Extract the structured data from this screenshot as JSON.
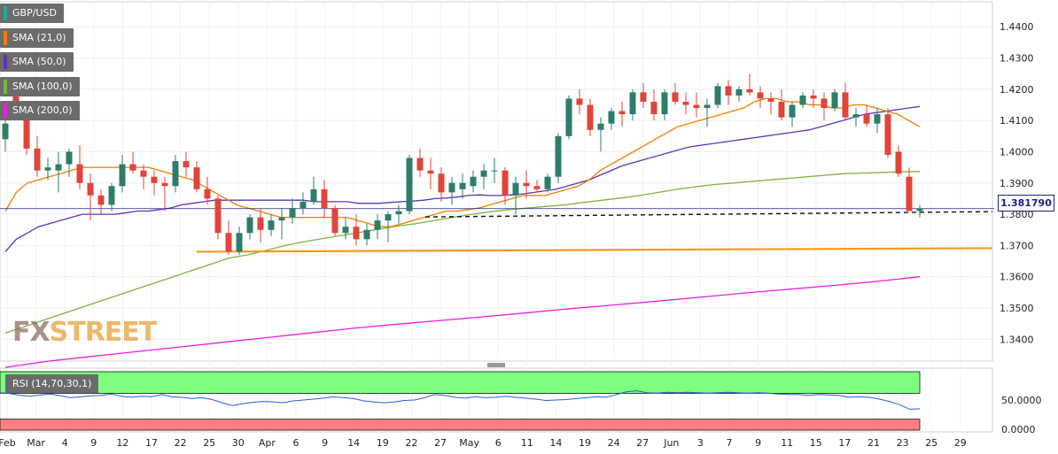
{
  "legend": [
    {
      "label": "GBP/USD",
      "color": "#26a69a"
    },
    {
      "label": "SMA (21,0)",
      "color": "#f57c00"
    },
    {
      "label": "SMA (50,0)",
      "color": "#5e35b1"
    },
    {
      "label": "SMA (100,0)",
      "color": "#7cb342"
    },
    {
      "label": "SMA (200,0)",
      "color": "#e91ee0"
    }
  ],
  "last_price": "1.381790",
  "watermark": {
    "part1": "FX",
    "part2": "STREET",
    "color1": "#8d6e63",
    "color2": "#e8a13a"
  },
  "rsi": {
    "label": "RSI (14,70,30,1)",
    "overbought": 70,
    "oversold": 30,
    "ticks": [
      "50.0000",
      "0.0000"
    ],
    "values": [
      66,
      64,
      60,
      58,
      61,
      63,
      59,
      55,
      57,
      59,
      60,
      63,
      58,
      56,
      58,
      57,
      62,
      57,
      56,
      53,
      55,
      51,
      44,
      38,
      42,
      45,
      47,
      46,
      44,
      48,
      50,
      52,
      54,
      57,
      55,
      53,
      48,
      46,
      44,
      46,
      49,
      50,
      55,
      62,
      60,
      56,
      54,
      57,
      55,
      56,
      58,
      56,
      54,
      52,
      49,
      50,
      51,
      53,
      55,
      57,
      56,
      62,
      68,
      70,
      66,
      65,
      67,
      66,
      67,
      66,
      65,
      66,
      67,
      66,
      65,
      66,
      65,
      63,
      62,
      62,
      60,
      62,
      61,
      60,
      56,
      57,
      56,
      52,
      47,
      40,
      30,
      31
    ]
  },
  "chart_data": {
    "type": "candlestick",
    "title": "",
    "y_ticks": [
      "1.4400",
      "1.4300",
      "1.4200",
      "1.4100",
      "1.4000",
      "1.3900",
      "1.3800",
      "1.3700",
      "1.3600",
      "1.3500",
      "1.3400"
    ],
    "x_ticks": [
      "Feb",
      "Mar",
      "4",
      "9",
      "12",
      "17",
      "22",
      "25",
      "30",
      "Apr",
      "6",
      "9",
      "14",
      "19",
      "22",
      "27",
      "May",
      "6",
      "11",
      "14",
      "19",
      "24",
      "27",
      "Jun",
      "3",
      "7",
      "9",
      "11",
      "15",
      "17",
      "21",
      "23",
      "25",
      "29"
    ],
    "ylim": [
      1.333,
      1.448
    ],
    "ohlc": [
      [
        1.404,
        1.411,
        1.4,
        1.409
      ],
      [
        1.419,
        1.424,
        1.412,
        1.414
      ],
      [
        1.414,
        1.416,
        1.399,
        1.401
      ],
      [
        1.401,
        1.405,
        1.392,
        1.394
      ],
      [
        1.394,
        1.398,
        1.391,
        1.395
      ],
      [
        1.394,
        1.4,
        1.387,
        1.396
      ],
      [
        1.396,
        1.401,
        1.392,
        1.4
      ],
      [
        1.396,
        1.402,
        1.388,
        1.39
      ],
      [
        1.39,
        1.393,
        1.378,
        1.386
      ],
      [
        1.386,
        1.388,
        1.38,
        1.383
      ],
      [
        1.383,
        1.39,
        1.381,
        1.389
      ],
      [
        1.389,
        1.399,
        1.387,
        1.396
      ],
      [
        1.396,
        1.4,
        1.393,
        1.394
      ],
      [
        1.394,
        1.396,
        1.388,
        1.392
      ],
      [
        1.392,
        1.394,
        1.386,
        1.39
      ],
      [
        1.39,
        1.392,
        1.381,
        1.389
      ],
      [
        1.389,
        1.399,
        1.387,
        1.397
      ],
      [
        1.397,
        1.4,
        1.392,
        1.395
      ],
      [
        1.395,
        1.397,
        1.387,
        1.388
      ],
      [
        1.388,
        1.392,
        1.383,
        1.385
      ],
      [
        1.385,
        1.386,
        1.372,
        1.374
      ],
      [
        1.374,
        1.378,
        1.367,
        1.368
      ],
      [
        1.368,
        1.376,
        1.367,
        1.374
      ],
      [
        1.374,
        1.38,
        1.372,
        1.379
      ],
      [
        1.379,
        1.382,
        1.371,
        1.375
      ],
      [
        1.375,
        1.38,
        1.373,
        1.378
      ],
      [
        1.378,
        1.382,
        1.372,
        1.379
      ],
      [
        1.379,
        1.385,
        1.377,
        1.382
      ],
      [
        1.382,
        1.387,
        1.38,
        1.384
      ],
      [
        1.384,
        1.392,
        1.383,
        1.388
      ],
      [
        1.388,
        1.391,
        1.379,
        1.382
      ],
      [
        1.382,
        1.383,
        1.373,
        1.374
      ],
      [
        1.374,
        1.379,
        1.372,
        1.376
      ],
      [
        1.376,
        1.38,
        1.37,
        1.372
      ],
      [
        1.372,
        1.377,
        1.37,
        1.375
      ],
      [
        1.375,
        1.38,
        1.372,
        1.378
      ],
      [
        1.378,
        1.381,
        1.371,
        1.38
      ],
      [
        1.38,
        1.383,
        1.377,
        1.381
      ],
      [
        1.381,
        1.399,
        1.38,
        1.398
      ],
      [
        1.398,
        1.401,
        1.392,
        1.394
      ],
      [
        1.394,
        1.398,
        1.388,
        1.393
      ],
      [
        1.393,
        1.395,
        1.384,
        1.387
      ],
      [
        1.387,
        1.392,
        1.383,
        1.39
      ],
      [
        1.388,
        1.393,
        1.385,
        1.39
      ],
      [
        1.389,
        1.394,
        1.387,
        1.392
      ],
      [
        1.392,
        1.396,
        1.388,
        1.394
      ],
      [
        1.394,
        1.398,
        1.39,
        1.394
      ],
      [
        1.394,
        1.395,
        1.383,
        1.386
      ],
      [
        1.386,
        1.392,
        1.38,
        1.39
      ],
      [
        1.39,
        1.394,
        1.385,
        1.389
      ],
      [
        1.389,
        1.391,
        1.387,
        1.388
      ],
      [
        1.388,
        1.393,
        1.387,
        1.392
      ],
      [
        1.392,
        1.406,
        1.39,
        1.405
      ],
      [
        1.405,
        1.418,
        1.404,
        1.417
      ],
      [
        1.417,
        1.42,
        1.412,
        1.415
      ],
      [
        1.415,
        1.417,
        1.405,
        1.407
      ],
      [
        1.407,
        1.411,
        1.4,
        1.409
      ],
      [
        1.409,
        1.414,
        1.407,
        1.413
      ],
      [
        1.413,
        1.416,
        1.408,
        1.412
      ],
      [
        1.412,
        1.42,
        1.41,
        1.419
      ],
      [
        1.419,
        1.422,
        1.414,
        1.416
      ],
      [
        1.416,
        1.42,
        1.41,
        1.412
      ],
      [
        1.412,
        1.42,
        1.41,
        1.419
      ],
      [
        1.419,
        1.422,
        1.415,
        1.416
      ],
      [
        1.416,
        1.419,
        1.412,
        1.415
      ],
      [
        1.415,
        1.419,
        1.411,
        1.414
      ],
      [
        1.414,
        1.417,
        1.408,
        1.415
      ],
      [
        1.415,
        1.422,
        1.414,
        1.421
      ],
      [
        1.421,
        1.423,
        1.415,
        1.418
      ],
      [
        1.418,
        1.421,
        1.416,
        1.42
      ],
      [
        1.42,
        1.425,
        1.418,
        1.419
      ],
      [
        1.419,
        1.421,
        1.414,
        1.417
      ],
      [
        1.417,
        1.419,
        1.412,
        1.416
      ],
      [
        1.416,
        1.42,
        1.41,
        1.411
      ],
      [
        1.411,
        1.416,
        1.408,
        1.415
      ],
      [
        1.415,
        1.419,
        1.414,
        1.418
      ],
      [
        1.418,
        1.42,
        1.414,
        1.417
      ],
      [
        1.417,
        1.419,
        1.41,
        1.414
      ],
      [
        1.414,
        1.42,
        1.413,
        1.419
      ],
      [
        1.419,
        1.422,
        1.41,
        1.411
      ],
      [
        1.411,
        1.414,
        1.408,
        1.412
      ],
      [
        1.412,
        1.415,
        1.408,
        1.409
      ],
      [
        1.409,
        1.414,
        1.406,
        1.412
      ],
      [
        1.412,
        1.414,
        1.398,
        1.399
      ],
      [
        1.4,
        1.402,
        1.392,
        1.393
      ],
      [
        1.392,
        1.395,
        1.381,
        1.381
      ],
      [
        1.381,
        1.383,
        1.379,
        1.3818
      ]
    ],
    "sma21": [
      1.381,
      1.387,
      1.39,
      1.391,
      1.392,
      1.393,
      1.394,
      1.395,
      1.395,
      1.395,
      1.395,
      1.395,
      1.395,
      1.395,
      1.394,
      1.393,
      1.392,
      1.391,
      1.389,
      1.387,
      1.385,
      1.383,
      1.382,
      1.381,
      1.38,
      1.379,
      1.379,
      1.379,
      1.379,
      1.379,
      1.379,
      1.379,
      1.378,
      1.377,
      1.376,
      1.376,
      1.377,
      1.378,
      1.379,
      1.38,
      1.381,
      1.381,
      1.3815,
      1.382,
      1.383,
      1.384,
      1.385,
      1.386,
      1.386,
      1.386,
      1.387,
      1.388,
      1.389,
      1.391,
      1.394,
      1.396,
      1.398,
      1.4,
      1.402,
      1.404,
      1.406,
      1.408,
      1.409,
      1.41,
      1.411,
      1.412,
      1.413,
      1.414,
      1.416,
      1.417,
      1.417,
      1.416,
      1.416,
      1.415,
      1.415,
      1.414,
      1.414,
      1.415,
      1.415,
      1.414,
      1.413,
      1.412,
      1.41,
      1.408
    ],
    "sma50": [
      1.368,
      1.372,
      1.374,
      1.376,
      1.377,
      1.378,
      1.379,
      1.38,
      1.38,
      1.38,
      1.38,
      1.3805,
      1.381,
      1.381,
      1.3815,
      1.382,
      1.383,
      1.3835,
      1.384,
      1.3845,
      1.3845,
      1.3845,
      1.3845,
      1.3845,
      1.3845,
      1.3845,
      1.3845,
      1.3845,
      1.384,
      1.384,
      1.384,
      1.384,
      1.3835,
      1.3835,
      1.3835,
      1.3838,
      1.384,
      1.3842,
      1.3845,
      1.385,
      1.3852,
      1.3855,
      1.386,
      1.3862,
      1.386,
      1.386,
      1.3862,
      1.3865,
      1.387,
      1.3875,
      1.388,
      1.389,
      1.39,
      1.391,
      1.3925,
      1.394,
      1.3955,
      1.3965,
      1.3975,
      1.3985,
      1.3995,
      1.4005,
      1.4015,
      1.402,
      1.4025,
      1.403,
      1.4035,
      1.404,
      1.4045,
      1.405,
      1.4055,
      1.406,
      1.4065,
      1.407,
      1.408,
      1.409,
      1.41,
      1.411,
      1.412,
      1.4125,
      1.413,
      1.4135,
      1.414,
      1.4145
    ],
    "sma100": [
      1.342,
      1.344,
      1.346,
      1.348,
      1.35,
      1.352,
      1.354,
      1.356,
      1.358,
      1.36,
      1.362,
      1.364,
      1.366,
      1.367,
      1.3685,
      1.37,
      1.3712,
      1.3722,
      1.3732,
      1.3742,
      1.3752,
      1.3762,
      1.377,
      1.378,
      1.379,
      1.38,
      1.3808,
      1.3815,
      1.382,
      1.3825,
      1.383,
      1.3838,
      1.3845,
      1.3852,
      1.386,
      1.387,
      1.388,
      1.3888,
      1.3895,
      1.39,
      1.3905,
      1.391,
      1.3915,
      1.392,
      1.3925,
      1.393,
      1.3932,
      1.3934,
      1.3936,
      1.3937
    ],
    "sma200": [
      1.331,
      1.333,
      1.3345,
      1.336,
      1.3375,
      1.339,
      1.3405,
      1.342,
      1.3435,
      1.3448,
      1.346,
      1.3472,
      1.3485,
      1.3498,
      1.351,
      1.3522,
      1.3535,
      1.3548,
      1.356,
      1.3572,
      1.3585,
      1.36
    ],
    "support_level": 1.368,
    "dashed_level": 1.3797
  }
}
